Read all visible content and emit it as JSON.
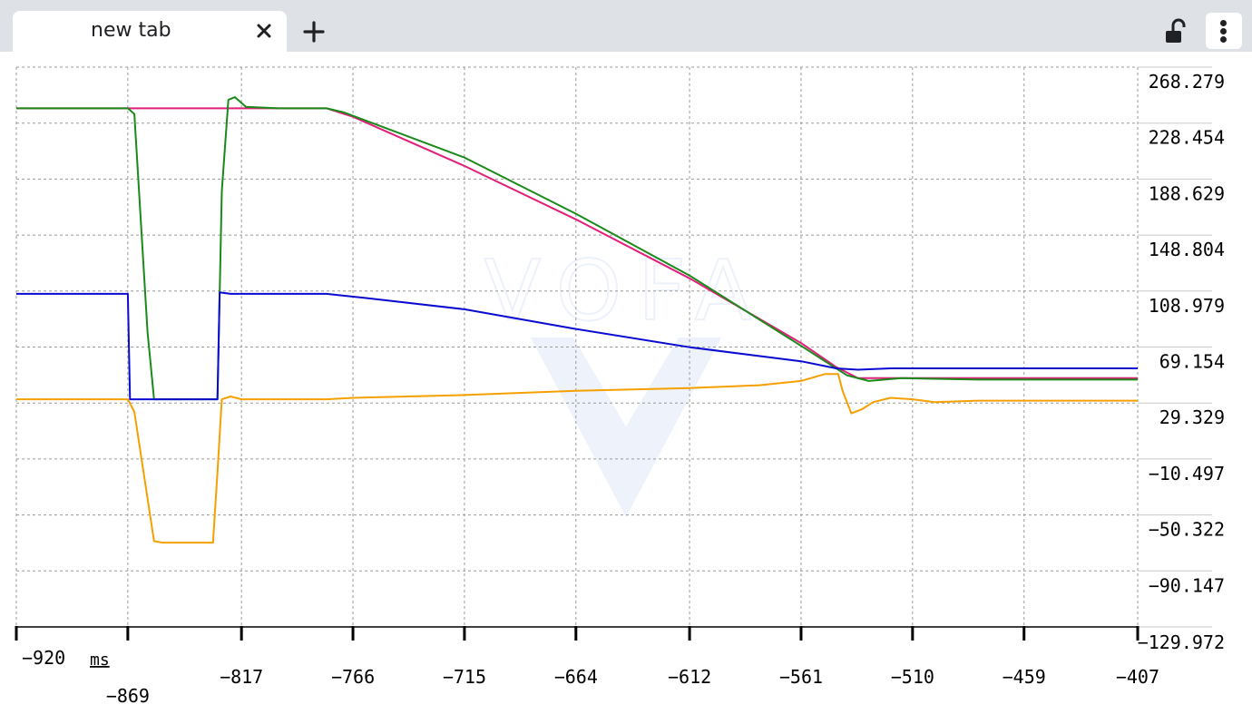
{
  "tabbar": {
    "tab_title": "new tab",
    "icons": [
      "close-icon",
      "plus-icon",
      "unlock-icon",
      "more-vert-icon"
    ]
  },
  "chart_data": {
    "type": "line",
    "title": "",
    "xlabel": "ms",
    "ylabel": "",
    "xlim": [
      -920,
      -407
    ],
    "ylim": [
      -129.972,
      268.279
    ],
    "grid": true,
    "y_axis_position": "right",
    "watermark": "VOFA",
    "x_ticks": [
      -920,
      -869,
      -817,
      -766,
      -715,
      -664,
      -612,
      -561,
      -510,
      -459,
      -407
    ],
    "y_ticks": [
      268.279,
      228.454,
      188.629,
      148.804,
      108.979,
      69.154,
      29.329,
      -10.497,
      -50.322,
      -90.147,
      -129.972
    ],
    "series": [
      {
        "color": "#e0207a",
        "points": [
          [
            -920,
            239
          ],
          [
            -829,
            239
          ],
          [
            -820,
            239
          ],
          [
            -778,
            239
          ],
          [
            -766,
            233
          ],
          [
            -715,
            198
          ],
          [
            -664,
            160
          ],
          [
            -612,
            118
          ],
          [
            -561,
            72
          ],
          [
            -545,
            55
          ],
          [
            -535,
            47
          ],
          [
            -520,
            47
          ],
          [
            -480,
            47
          ],
          [
            -407,
            47
          ]
        ]
      },
      {
        "color": "#1a8a1a",
        "points": [
          [
            -920,
            239
          ],
          [
            -869,
            239
          ],
          [
            -866,
            235
          ],
          [
            -860,
            80
          ],
          [
            -857,
            32
          ],
          [
            -840,
            32
          ],
          [
            -830,
            32
          ],
          [
            -828,
            32
          ],
          [
            -826,
            180
          ],
          [
            -823,
            245
          ],
          [
            -820,
            247
          ],
          [
            -815,
            240
          ],
          [
            -800,
            239
          ],
          [
            -778,
            239
          ],
          [
            -770,
            236
          ],
          [
            -715,
            204
          ],
          [
            -664,
            164
          ],
          [
            -612,
            120
          ],
          [
            -561,
            70
          ],
          [
            -540,
            49
          ],
          [
            -530,
            45
          ],
          [
            -515,
            47
          ],
          [
            -480,
            46
          ],
          [
            -407,
            46
          ]
        ]
      },
      {
        "color": "#0a0ad0",
        "points": [
          [
            -920,
            107
          ],
          [
            -869,
            107
          ],
          [
            -868,
            32
          ],
          [
            -830,
            32
          ],
          [
            -828,
            32
          ],
          [
            -827,
            108
          ],
          [
            -822,
            107
          ],
          [
            -805,
            107
          ],
          [
            -778,
            107
          ],
          [
            -760,
            104
          ],
          [
            -715,
            96
          ],
          [
            -664,
            82
          ],
          [
            -612,
            69
          ],
          [
            -561,
            59
          ],
          [
            -545,
            54
          ],
          [
            -535,
            53
          ],
          [
            -520,
            54
          ],
          [
            -480,
            54
          ],
          [
            -407,
            54
          ]
        ]
      },
      {
        "color": "#f5a000",
        "points": [
          [
            -920,
            32
          ],
          [
            -869,
            32
          ],
          [
            -866,
            23
          ],
          [
            -857,
            -69
          ],
          [
            -853,
            -70
          ],
          [
            -840,
            -70
          ],
          [
            -830,
            -70
          ],
          [
            -828,
            -20
          ],
          [
            -826,
            32
          ],
          [
            -822,
            34
          ],
          [
            -817,
            32
          ],
          [
            -805,
            32
          ],
          [
            -778,
            32
          ],
          [
            -766,
            33
          ],
          [
            -715,
            35
          ],
          [
            -664,
            38
          ],
          [
            -612,
            40
          ],
          [
            -580,
            42
          ],
          [
            -561,
            45
          ],
          [
            -550,
            50
          ],
          [
            -544,
            50
          ],
          [
            -542,
            38
          ],
          [
            -538,
            22
          ],
          [
            -533,
            25
          ],
          [
            -528,
            30
          ],
          [
            -520,
            33
          ],
          [
            -510,
            32
          ],
          [
            -500,
            30
          ],
          [
            -480,
            31
          ],
          [
            -459,
            31
          ],
          [
            -430,
            31
          ],
          [
            -407,
            31
          ]
        ]
      }
    ]
  }
}
